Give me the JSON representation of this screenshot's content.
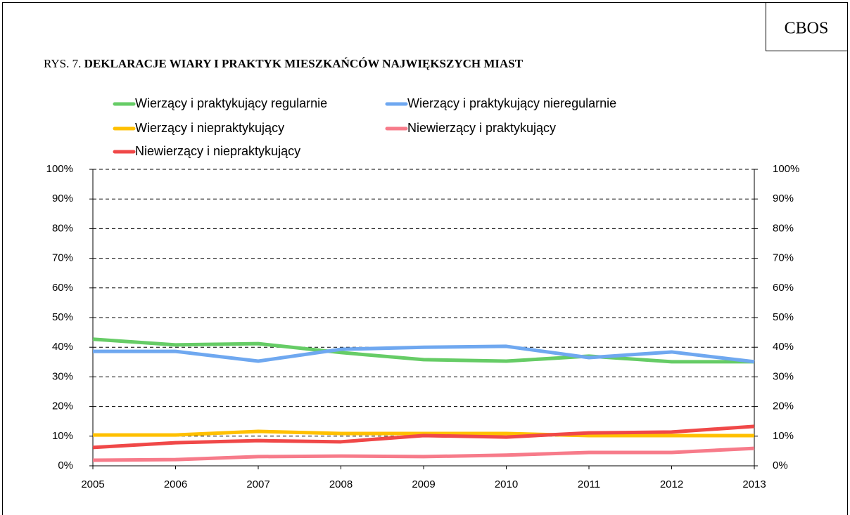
{
  "source": "CBOS",
  "chart_data": {
    "type": "line",
    "figure_label": "RYS. 7.",
    "title": "DEKLARACJE WIARY I PRAKTYK MIESZKAŃCÓW NAJWIĘKSZYCH MIAST",
    "x": [
      2005,
      2006,
      2007,
      2008,
      2009,
      2010,
      2011,
      2012,
      2013
    ],
    "xlim": [
      2005,
      2013
    ],
    "xticks": [
      2005,
      2006,
      2007,
      2008,
      2009,
      2010,
      2011,
      2012,
      2013
    ],
    "ylim": [
      0,
      100
    ],
    "yticks": [
      {
        "value": 0,
        "label": "0%"
      },
      {
        "value": 10,
        "label": "10%"
      },
      {
        "value": 20,
        "label": "20%"
      },
      {
        "value": 30,
        "label": "30%"
      },
      {
        "value": 40,
        "label": "40%"
      },
      {
        "value": 50,
        "label": "50%"
      },
      {
        "value": 60,
        "label": "60%"
      },
      {
        "value": 70,
        "label": "70%"
      },
      {
        "value": 80,
        "label": "80%"
      },
      {
        "value": 90,
        "label": "90%"
      },
      {
        "value": 100,
        "label": "100%"
      }
    ],
    "y2lim": [
      0,
      100
    ],
    "y2ticks": [
      {
        "value": 0,
        "label": "0%"
      },
      {
        "value": 10,
        "label": "10%"
      },
      {
        "value": 20,
        "label": "20%"
      },
      {
        "value": 30,
        "label": "30%"
      },
      {
        "value": 40,
        "label": "40%"
      },
      {
        "value": 50,
        "label": "50%"
      },
      {
        "value": 60,
        "label": "60%"
      },
      {
        "value": 70,
        "label": "70%"
      },
      {
        "value": 80,
        "label": "80%"
      },
      {
        "value": 90,
        "label": "90%"
      },
      {
        "value": 100,
        "label": "100%"
      }
    ],
    "grid": true,
    "legend": "top",
    "series": [
      {
        "name": "Wierzący i praktykujący regularnie",
        "color": "#66cc66",
        "values": [
          42.7,
          40.8,
          41.2,
          38.2,
          35.8,
          35.3,
          37.0,
          35.1,
          35.1
        ]
      },
      {
        "name": "Wierzący i praktykujący nieregularnie",
        "color": "#6fa8f0",
        "values": [
          38.6,
          38.6,
          35.3,
          39.3,
          40.0,
          40.3,
          36.5,
          38.4,
          35.1
        ]
      },
      {
        "name": "Wierzący i niepraktykujący",
        "color": "#ffc000",
        "values": [
          10.4,
          10.4,
          11.6,
          10.9,
          10.9,
          10.9,
          10.2,
          10.2,
          10.2
        ]
      },
      {
        "name": "Niewierzący i praktykujący",
        "color": "#f77b8a",
        "values": [
          1.9,
          2.1,
          3.1,
          3.3,
          3.1,
          3.6,
          4.5,
          4.5,
          5.9
        ]
      },
      {
        "name": "Niewierzący i niepraktykujący",
        "color": "#f04848",
        "values": [
          6.2,
          7.8,
          8.5,
          8.1,
          10.2,
          9.7,
          11.1,
          11.4,
          13.3
        ]
      }
    ]
  }
}
